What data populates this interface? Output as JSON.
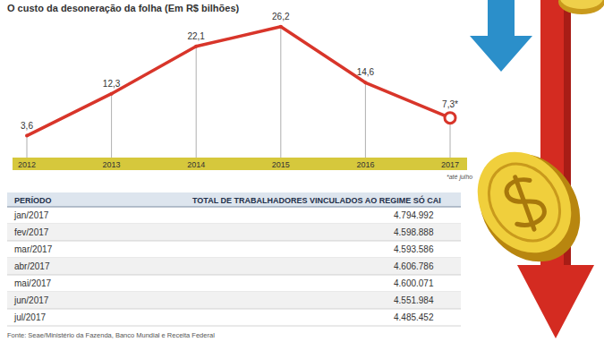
{
  "chart_data": {
    "type": "line",
    "title": "O custo da desoneração da folha (Em R$ bilhões)",
    "categories": [
      "2012",
      "2013",
      "2014",
      "2015",
      "2016",
      "2017"
    ],
    "values": [
      3.6,
      12.3,
      22.1,
      26.2,
      14.6,
      7.3
    ],
    "value_labels": [
      "3,6",
      "12,3",
      "22,1",
      "26,2",
      "14,6",
      "7,3*"
    ],
    "color": "#d8352a",
    "ylim": [
      0,
      28
    ],
    "data_labels": true,
    "tick_labels": "x",
    "grid": false,
    "annotation": "*até julho"
  },
  "table": {
    "headers": [
      "PERÍODO",
      "TOTAL DE TRABALHADORES VINCULADOS AO REGIME SÓ CAI"
    ],
    "rows": [
      [
        "jan/2017",
        "4.794.992"
      ],
      [
        "fev/2017",
        "4.598.888"
      ],
      [
        "mar/2017",
        "4.593.586"
      ],
      [
        "abr/2017",
        "4.606.786"
      ],
      [
        "mai/2017",
        "4.600.071"
      ],
      [
        "jun/2017",
        "4.551.984"
      ],
      [
        "jul/2017",
        "4.485.452"
      ]
    ]
  },
  "source": "Fonte: Seae/Ministério da Fazenda, Banco Mundial e Receita Federal"
}
